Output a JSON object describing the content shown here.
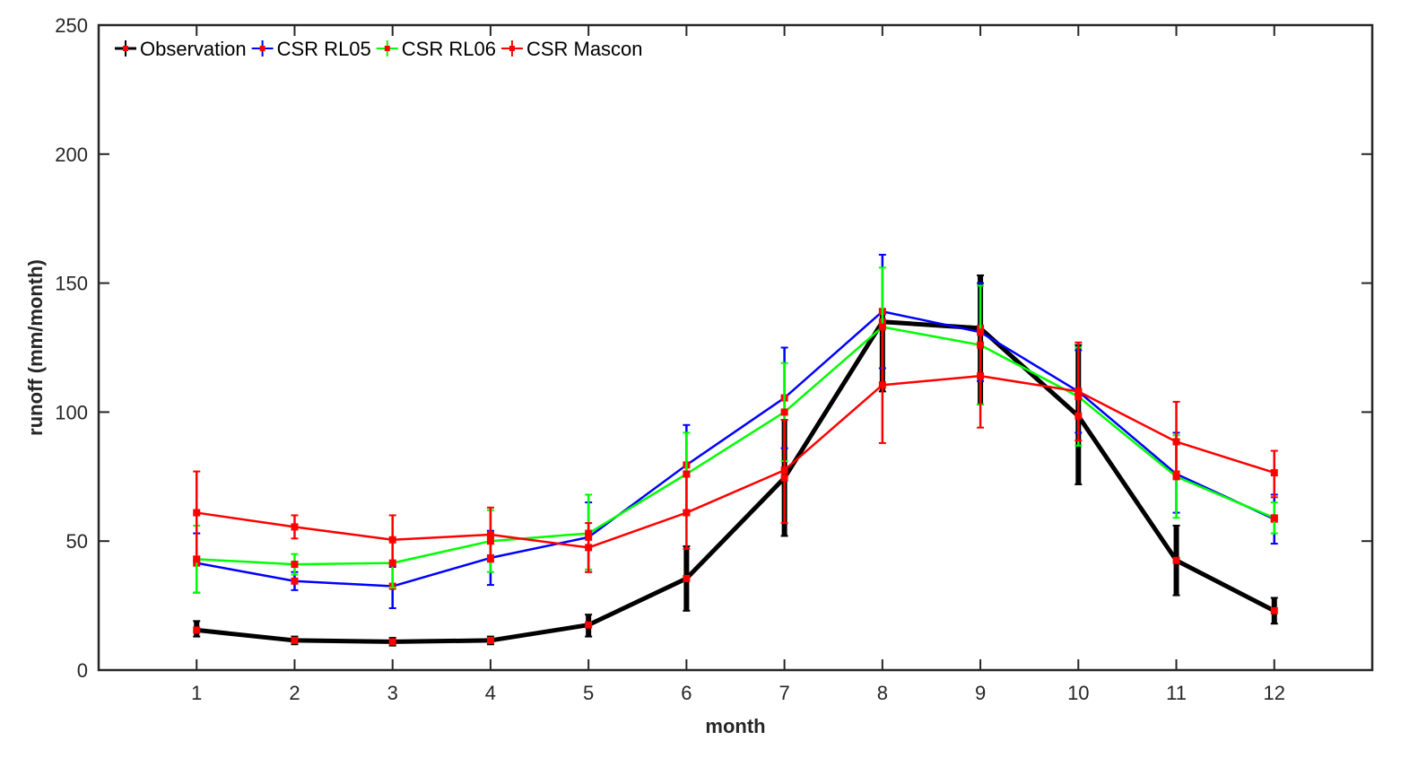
{
  "chart_data": {
    "type": "line",
    "title": "",
    "xlabel": "month",
    "ylabel": "runoff (mm/month)",
    "x": [
      1,
      2,
      3,
      4,
      5,
      6,
      7,
      8,
      9,
      10,
      11,
      12
    ],
    "xlim": [
      0,
      13
    ],
    "ylim": [
      0,
      250
    ],
    "yticks": [
      0,
      50,
      100,
      150,
      200,
      250
    ],
    "grid": false,
    "legend_position": "top-left",
    "series": [
      {
        "name": "Observation",
        "color": "#000000",
        "values": [
          15.5,
          11.5,
          11,
          11.5,
          17.5,
          35.5,
          74.5,
          135,
          132.5,
          98.5,
          42.5,
          23
        ],
        "err_low": [
          13,
          10,
          9.5,
          10,
          13,
          23,
          52,
          108,
          103,
          72,
          29,
          18
        ],
        "err_high": [
          19,
          13,
          12.5,
          13,
          21.5,
          48,
          97,
          138,
          153,
          126,
          56,
          28
        ]
      },
      {
        "name": "CSR RL05",
        "color": "#0000ff",
        "values": [
          41.5,
          34.5,
          32.5,
          43.5,
          51.5,
          79.5,
          105.5,
          139,
          131,
          108,
          76,
          58.5
        ],
        "err_low": [
          30,
          31,
          24,
          33,
          38,
          62,
          86,
          117,
          112,
          92,
          61,
          49
        ],
        "err_high": [
          53,
          38,
          40,
          54,
          65,
          95,
          125,
          161,
          150,
          124,
          92,
          68
        ]
      },
      {
        "name": "CSR RL06",
        "color": "#00ff00",
        "values": [
          43,
          41,
          41.5,
          50,
          53,
          76,
          100,
          133,
          126,
          106,
          75,
          59
        ],
        "err_low": [
          30,
          37,
          32,
          38,
          39,
          60,
          81,
          110,
          103,
          87,
          59,
          53
        ],
        "err_high": [
          56,
          45,
          51,
          62,
          68,
          92,
          119,
          156,
          149,
          125,
          91,
          65
        ]
      },
      {
        "name": "CSR Mascon",
        "color": "#ff0000",
        "values": [
          61,
          55.5,
          50.5,
          52.5,
          47.5,
          61,
          77.5,
          110.5,
          114,
          108,
          88.5,
          76.5
        ],
        "err_low": [
          44,
          51,
          41,
          42,
          38,
          47,
          57,
          88,
          94,
          89,
          74,
          67
        ],
        "err_high": [
          77,
          60,
          60,
          63,
          57,
          75,
          97,
          133,
          132,
          127,
          104,
          85
        ]
      }
    ]
  }
}
